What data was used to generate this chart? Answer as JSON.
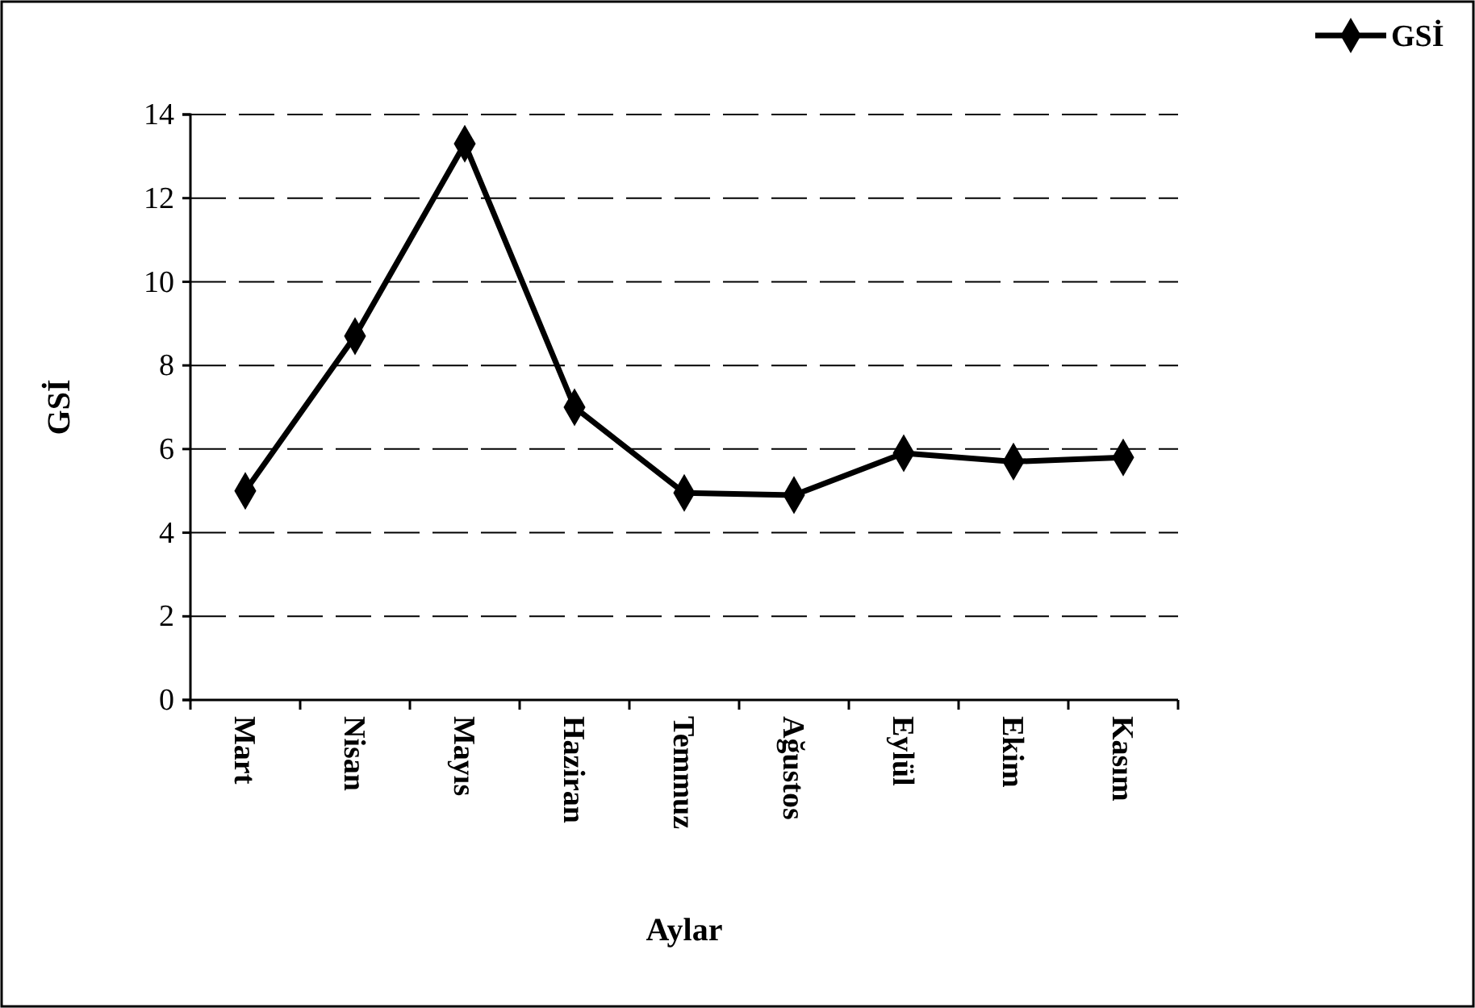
{
  "chart_data": {
    "type": "line",
    "xlabel": "Aylar",
    "ylabel": "GSİ",
    "categories": [
      "Mart",
      "Nisan",
      "Mayıs",
      "Haziran",
      "Temmuz",
      "Ağustos",
      "Eylül",
      "Ekim",
      "Kasım"
    ],
    "series": [
      {
        "name": "GSİ",
        "color": "#000000",
        "values": [
          5.0,
          8.7,
          13.3,
          7.0,
          4.95,
          4.9,
          5.9,
          5.7,
          5.8
        ]
      }
    ],
    "ylim": [
      0,
      14
    ],
    "yticks": [
      0,
      2,
      4,
      6,
      8,
      10,
      12,
      14
    ],
    "grid": "y",
    "legend": "top right",
    "marker": "diamond",
    "line_style": "solid"
  }
}
